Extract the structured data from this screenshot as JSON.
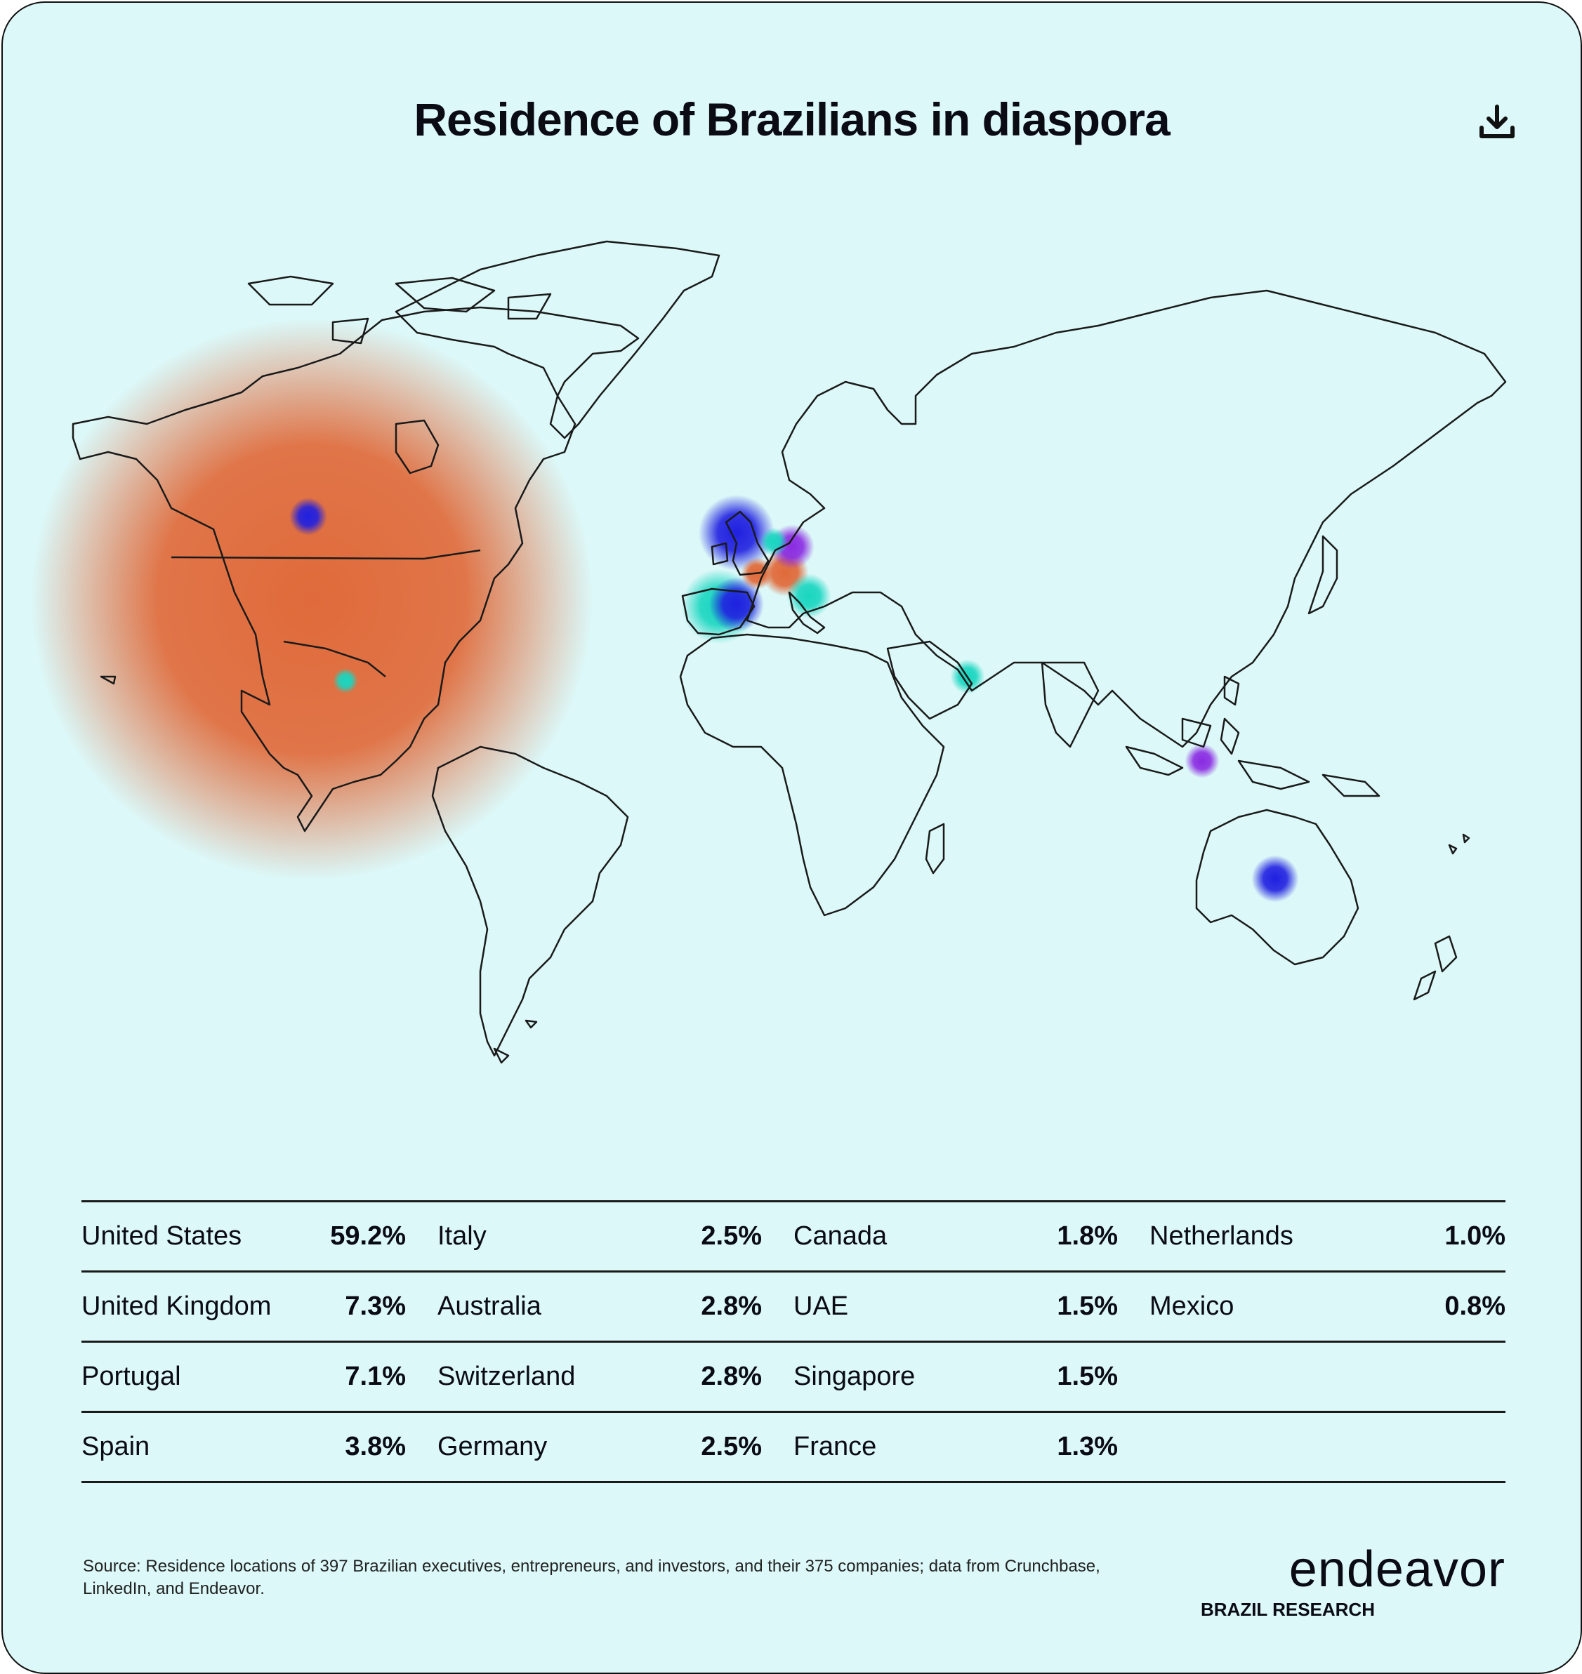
{
  "title": "Residence of Brazilians in diaspora",
  "download_icon": "download-icon",
  "map": {
    "bubble_colors": {
      "orange": "#e06a3a",
      "blue": "#2020e0",
      "teal": "#19d6c0",
      "purple": "#8a2be2"
    },
    "bubbles": [
      {
        "country": "United States",
        "share": 59.2,
        "color": "orange"
      },
      {
        "country": "United Kingdom",
        "share": 7.3,
        "color": "blue"
      },
      {
        "country": "Portugal",
        "share": 7.1,
        "color": "teal"
      },
      {
        "country": "Spain",
        "share": 3.8,
        "color": "blue"
      },
      {
        "country": "Italy",
        "share": 2.5,
        "color": "teal"
      },
      {
        "country": "Australia",
        "share": 2.8,
        "color": "blue"
      },
      {
        "country": "Switzerland",
        "share": 2.8,
        "color": "orange"
      },
      {
        "country": "Germany",
        "share": 2.5,
        "color": "purple"
      },
      {
        "country": "Canada",
        "share": 1.8,
        "color": "blue"
      },
      {
        "country": "UAE",
        "share": 1.5,
        "color": "teal"
      },
      {
        "country": "Singapore",
        "share": 1.5,
        "color": "purple"
      },
      {
        "country": "France",
        "share": 1.3,
        "color": "orange"
      },
      {
        "country": "Netherlands",
        "share": 1.0,
        "color": "teal"
      },
      {
        "country": "Mexico",
        "share": 0.8,
        "color": "teal"
      }
    ]
  },
  "table": {
    "rows": [
      [
        {
          "name": "United States",
          "pct": "59.2%"
        },
        {
          "name": "Italy",
          "pct": "2.5%"
        },
        {
          "name": "Canada",
          "pct": "1.8%"
        },
        {
          "name": "Netherlands",
          "pct": "1.0%"
        }
      ],
      [
        {
          "name": "United Kingdom",
          "pct": "7.3%"
        },
        {
          "name": "Australia",
          "pct": "2.8%"
        },
        {
          "name": "UAE",
          "pct": "1.5%"
        },
        {
          "name": "Mexico",
          "pct": "0.8%"
        }
      ],
      [
        {
          "name": "Portugal",
          "pct": "7.1%"
        },
        {
          "name": "Switzerland",
          "pct": "2.8%"
        },
        {
          "name": "Singapore",
          "pct": "1.5%"
        },
        {
          "name": "",
          "pct": ""
        }
      ],
      [
        {
          "name": "Spain",
          "pct": "3.8%"
        },
        {
          "name": "Germany",
          "pct": "2.5%"
        },
        {
          "name": "France",
          "pct": "1.3%"
        },
        {
          "name": "",
          "pct": ""
        }
      ]
    ]
  },
  "source": "Source: Residence locations of 397 Brazilian executives, entrepreneurs, and investors, and their 375 companies; data from Crunchbase, LinkedIn, and Endeavor.",
  "logo": {
    "word": "endeavor",
    "sub": "BRAZIL RESEARCH"
  }
}
